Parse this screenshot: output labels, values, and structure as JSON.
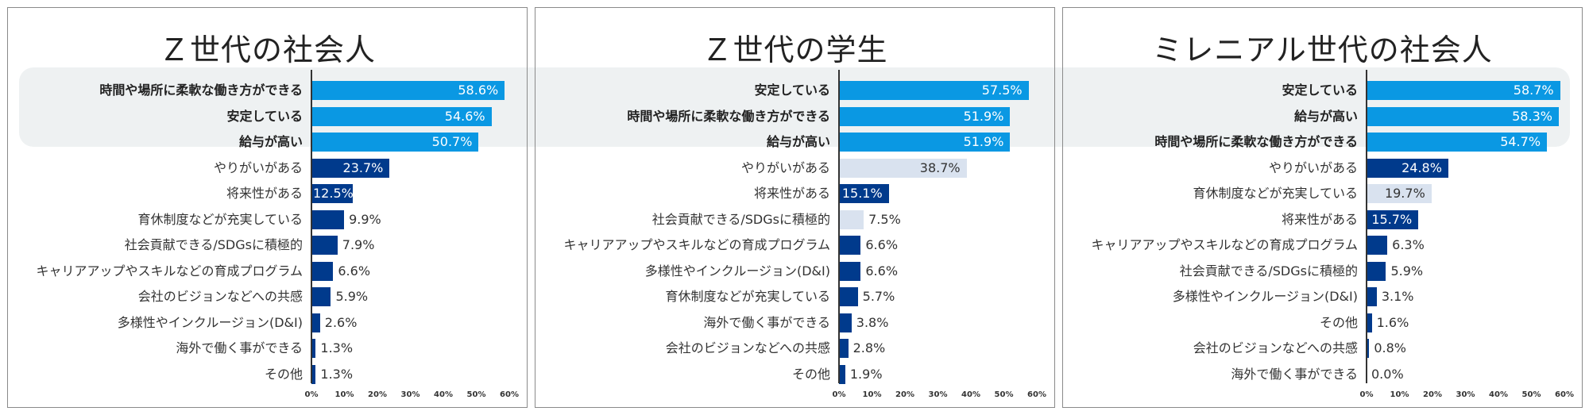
{
  "colors": {
    "top": "#0a98e3",
    "dark": "#003a8c",
    "light": "#d9e2ef",
    "highlight_band": "#eef1f2"
  },
  "chart_data": [
    {
      "type": "bar",
      "orientation": "horizontal",
      "title": "Ｚ世代の社会人",
      "xlim": [
        0,
        60
      ],
      "ticks": [
        "0%",
        "10%",
        "20%",
        "30%",
        "40%",
        "50%",
        "60%"
      ],
      "items": [
        {
          "label": "時間や場所に柔軟な働き方ができる",
          "value": 58.6,
          "text": "58.6%",
          "style": "top"
        },
        {
          "label": "安定している",
          "value": 54.6,
          "text": "54.6%",
          "style": "top"
        },
        {
          "label": "給与が高い",
          "value": 50.7,
          "text": "50.7%",
          "style": "top"
        },
        {
          "label": "やりがいがある",
          "value": 23.7,
          "text": "23.7%",
          "style": "dark"
        },
        {
          "label": "将来性がある",
          "value": 12.5,
          "text": "12.5%",
          "style": "dark"
        },
        {
          "label": "育休制度などが充実している",
          "value": 9.9,
          "text": "9.9%",
          "style": "dark"
        },
        {
          "label": "社会貢献できる/SDGsに積極的",
          "value": 7.9,
          "text": "7.9%",
          "style": "dark"
        },
        {
          "label": "キャリアアップやスキルなどの育成プログラム",
          "value": 6.6,
          "text": "6.6%",
          "style": "dark"
        },
        {
          "label": "会社のビジョンなどへの共感",
          "value": 5.9,
          "text": "5.9%",
          "style": "dark"
        },
        {
          "label": "多様性やインクルージョン(D&I)",
          "value": 2.6,
          "text": "2.6%",
          "style": "dark"
        },
        {
          "label": "海外で働く事ができる",
          "value": 1.3,
          "text": "1.3%",
          "style": "dark"
        },
        {
          "label": "その他",
          "value": 1.3,
          "text": "1.3%",
          "style": "dark"
        }
      ]
    },
    {
      "type": "bar",
      "orientation": "horizontal",
      "title": "Ｚ世代の学生",
      "xlim": [
        0,
        60
      ],
      "ticks": [
        "0%",
        "10%",
        "20%",
        "30%",
        "40%",
        "50%",
        "60%"
      ],
      "items": [
        {
          "label": "安定している",
          "value": 57.5,
          "text": "57.5%",
          "style": "top"
        },
        {
          "label": "時間や場所に柔軟な働き方ができる",
          "value": 51.9,
          "text": "51.9%",
          "style": "top"
        },
        {
          "label": "給与が高い",
          "value": 51.9,
          "text": "51.9%",
          "style": "top"
        },
        {
          "label": "やりがいがある",
          "value": 38.7,
          "text": "38.7%",
          "style": "light"
        },
        {
          "label": "将来性がある",
          "value": 15.1,
          "text": "15.1%",
          "style": "dark"
        },
        {
          "label": "社会貢献できる/SDGsに積極的",
          "value": 7.5,
          "text": "7.5%",
          "style": "light"
        },
        {
          "label": "キャリアアップやスキルなどの育成プログラム",
          "value": 6.6,
          "text": "6.6%",
          "style": "dark"
        },
        {
          "label": "多様性やインクルージョン(D&I)",
          "value": 6.6,
          "text": "6.6%",
          "style": "dark"
        },
        {
          "label": "育休制度などが充実している",
          "value": 5.7,
          "text": "5.7%",
          "style": "dark"
        },
        {
          "label": "海外で働く事ができる",
          "value": 3.8,
          "text": "3.8%",
          "style": "dark"
        },
        {
          "label": "会社のビジョンなどへの共感",
          "value": 2.8,
          "text": "2.8%",
          "style": "dark"
        },
        {
          "label": "その他",
          "value": 1.9,
          "text": "1.9%",
          "style": "dark"
        }
      ]
    },
    {
      "type": "bar",
      "orientation": "horizontal",
      "title": "ミレニアル世代の社会人",
      "xlim": [
        0,
        60
      ],
      "ticks": [
        "0%",
        "10%",
        "20%",
        "30%",
        "40%",
        "50%",
        "60%"
      ],
      "items": [
        {
          "label": "安定している",
          "value": 58.7,
          "text": "58.7%",
          "style": "top"
        },
        {
          "label": "給与が高い",
          "value": 58.3,
          "text": "58.3%",
          "style": "top"
        },
        {
          "label": "時間や場所に柔軟な働き方ができる",
          "value": 54.7,
          "text": "54.7%",
          "style": "top"
        },
        {
          "label": "やりがいがある",
          "value": 24.8,
          "text": "24.8%",
          "style": "dark"
        },
        {
          "label": "育休制度などが充実している",
          "value": 19.7,
          "text": "19.7%",
          "style": "light"
        },
        {
          "label": "将来性がある",
          "value": 15.7,
          "text": "15.7%",
          "style": "dark"
        },
        {
          "label": "キャリアアップやスキルなどの育成プログラム",
          "value": 6.3,
          "text": "6.3%",
          "style": "dark"
        },
        {
          "label": "社会貢献できる/SDGsに積極的",
          "value": 5.9,
          "text": "5.9%",
          "style": "dark"
        },
        {
          "label": "多様性やインクルージョン(D&I)",
          "value": 3.1,
          "text": "3.1%",
          "style": "dark"
        },
        {
          "label": "その他",
          "value": 1.6,
          "text": "1.6%",
          "style": "dark"
        },
        {
          "label": "会社のビジョンなどへの共感",
          "value": 0.8,
          "text": "0.8%",
          "style": "dark"
        },
        {
          "label": "海外で働く事ができる",
          "value": 0.0,
          "text": "0.0%",
          "style": "dark"
        }
      ]
    }
  ]
}
